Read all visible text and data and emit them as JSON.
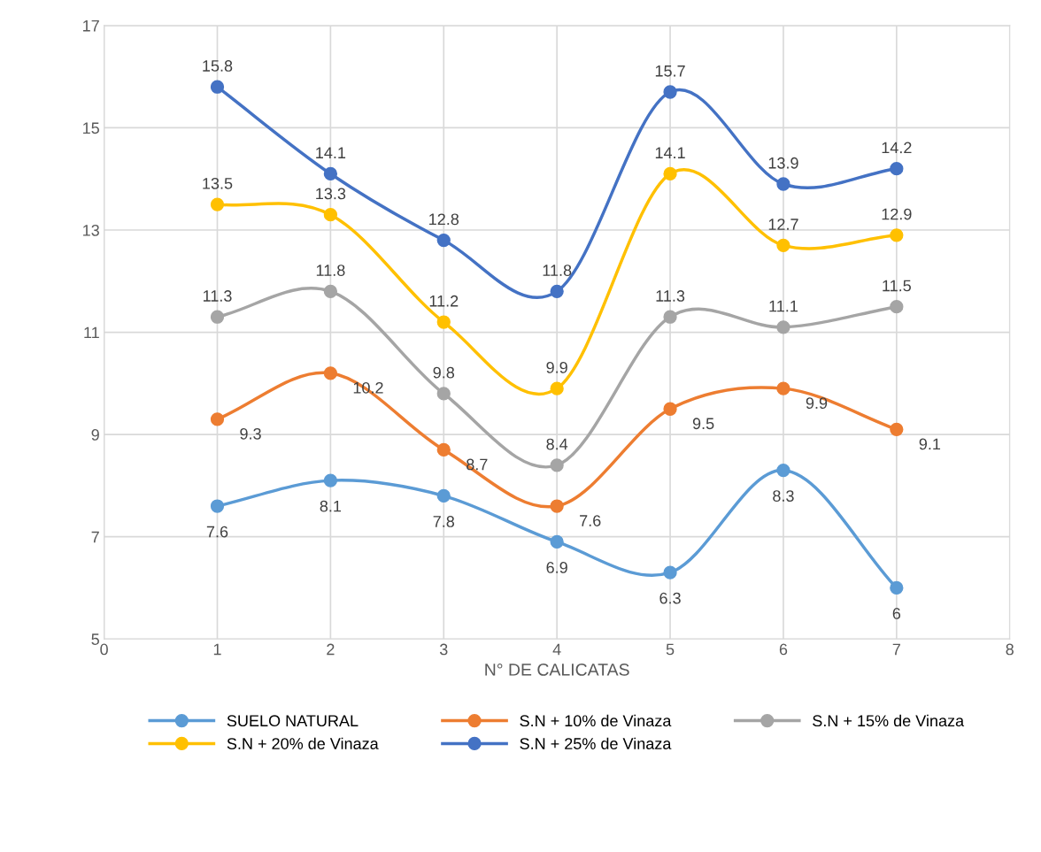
{
  "chart_data": {
    "type": "line",
    "xlabel": "N° DE CALICATAS",
    "x": [
      1,
      2,
      3,
      4,
      5,
      6,
      7
    ],
    "xlim": [
      0,
      8
    ],
    "xticks": [
      0,
      1,
      2,
      3,
      4,
      5,
      6,
      7,
      8
    ],
    "ylim": [
      5,
      17
    ],
    "yticks": [
      5,
      7,
      9,
      11,
      13,
      15,
      17
    ],
    "grid": true,
    "legend": "bottom",
    "marker": "circle",
    "line_style": "solid",
    "data_labels": true,
    "series": [
      {
        "name": "SUELO NATURAL",
        "color": "#5b9bd5",
        "values": [
          7.6,
          8.1,
          7.8,
          6.9,
          6.3,
          8.3,
          6
        ]
      },
      {
        "name": "S.N + 10% de Vinaza",
        "color": "#ed7d31",
        "values": [
          9.3,
          10.2,
          8.7,
          7.6,
          9.5,
          9.9,
          9.1
        ]
      },
      {
        "name": "S.N + 15% de Vinaza",
        "color": "#a5a5a5",
        "values": [
          11.3,
          11.8,
          9.8,
          8.4,
          11.3,
          11.1,
          11.5
        ]
      },
      {
        "name": "S.N + 20% de Vinaza",
        "color": "#ffc000",
        "values": [
          13.5,
          13.3,
          11.2,
          9.9,
          14.1,
          12.7,
          12.9
        ]
      },
      {
        "name": "S.N + 25% de Vinaza",
        "color": "#4472c4",
        "values": [
          15.8,
          14.1,
          12.8,
          11.8,
          15.7,
          13.9,
          14.2
        ]
      }
    ]
  }
}
